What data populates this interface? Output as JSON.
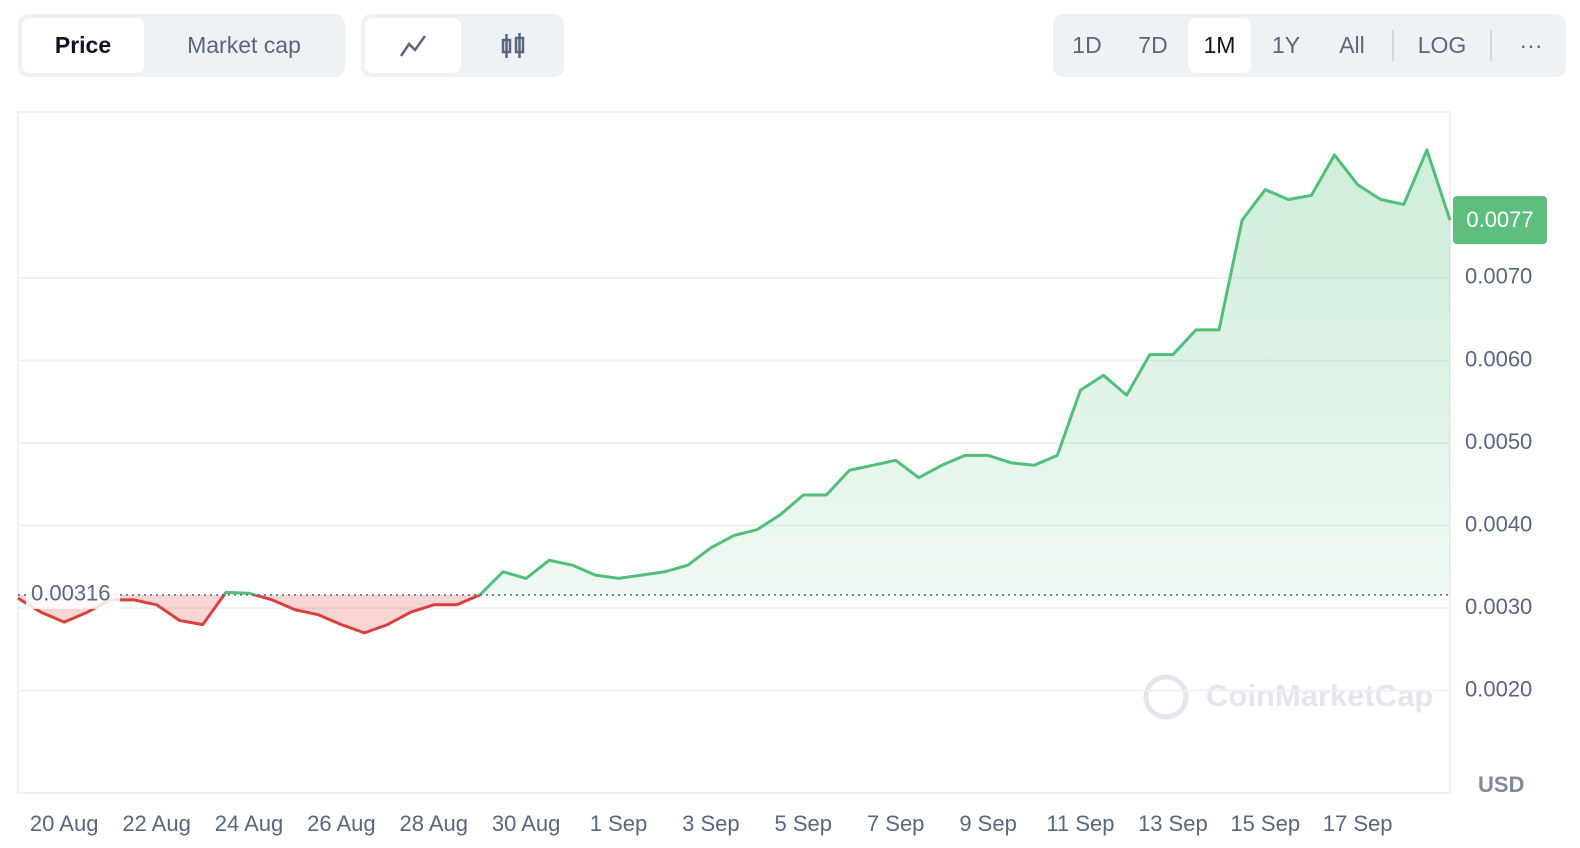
{
  "toolbar": {
    "view_tabs": [
      "Price",
      "Market cap"
    ],
    "ranges": [
      "1D",
      "7D",
      "1M",
      "1Y",
      "All",
      "LOG"
    ],
    "more": "···"
  },
  "chart_data": {
    "type": "line",
    "categories": [
      null,
      null,
      "20 Aug",
      null,
      null,
      null,
      "22 Aug",
      null,
      null,
      null,
      "24 Aug",
      null,
      null,
      null,
      "26 Aug",
      null,
      null,
      null,
      "28 Aug",
      null,
      null,
      null,
      "30 Aug",
      null,
      null,
      null,
      "1 Sep",
      null,
      null,
      null,
      "3 Sep",
      null,
      null,
      null,
      "5 Sep",
      null,
      null,
      null,
      "7 Sep",
      null,
      null,
      null,
      "9 Sep",
      null,
      null,
      null,
      "11 Sep",
      null,
      null,
      null,
      "13 Sep",
      null,
      null,
      null,
      "15 Sep",
      null,
      null,
      null,
      "17 Sep",
      null,
      null,
      null,
      null
    ],
    "values": [
      0.00312,
      0.00295,
      0.00283,
      0.00295,
      0.0031,
      0.0031,
      0.00304,
      0.00285,
      0.0028,
      0.00319,
      0.00318,
      0.0031,
      0.00298,
      0.00292,
      0.0028,
      0.0027,
      0.0028,
      0.00295,
      0.00304,
      0.00304,
      0.00316,
      0.00344,
      0.00336,
      0.00358,
      0.00352,
      0.0034,
      0.00336,
      0.0034,
      0.00344,
      0.00352,
      0.00373,
      0.00388,
      0.00395,
      0.00413,
      0.00437,
      0.00437,
      0.00467,
      0.00473,
      0.00479,
      0.00458,
      0.00473,
      0.00485,
      0.00485,
      0.00476,
      0.00473,
      0.00485,
      0.00564,
      0.00582,
      0.00558,
      0.00607,
      0.00607,
      0.00637,
      0.00637,
      0.0077,
      0.00807,
      0.00795,
      0.008,
      0.00849,
      0.00813,
      0.00795,
      0.00789,
      0.00855,
      0.0077
    ],
    "up_color": "#4fbf7a",
    "down_color": "#d94040",
    "reference_value": 0.00316,
    "last_price": 0.0077,
    "ylim": [
      0.00076,
      0.00901
    ],
    "yticks": [
      {
        "value": 0.002,
        "label": "0.0020"
      },
      {
        "value": 0.003,
        "label": "0.0030"
      },
      {
        "value": 0.004,
        "label": "0.0040"
      },
      {
        "value": 0.005,
        "label": "0.0050"
      },
      {
        "value": 0.006,
        "label": "0.0060"
      },
      {
        "value": 0.007,
        "label": "0.0070"
      }
    ],
    "grid": true,
    "currency": "USD",
    "watermark": "CoinMarketCap"
  }
}
